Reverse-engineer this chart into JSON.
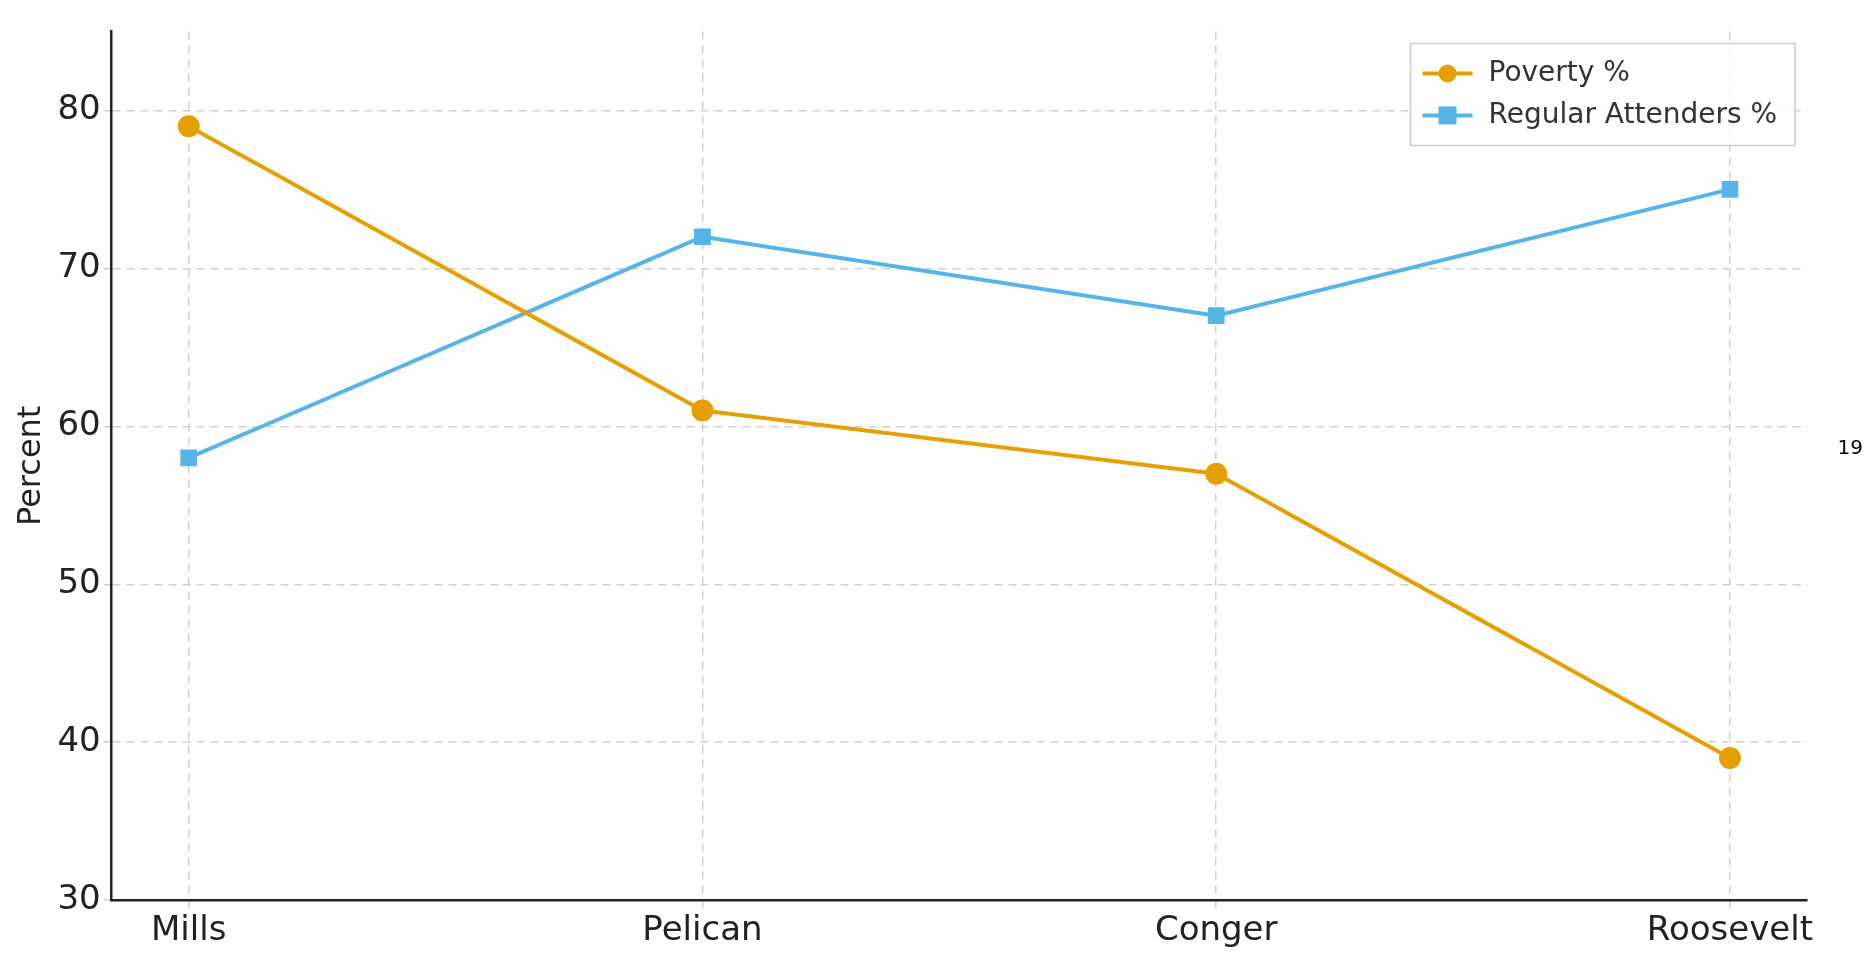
{
  "chart_data": {
    "type": "line",
    "ylabel": "Percent",
    "categories": [
      "Mills",
      "Pelican",
      "Conger",
      "Roosevelt"
    ],
    "series": [
      {
        "name": "Poverty %",
        "color": "#e69f00",
        "values": [
          79,
          61,
          57,
          39
        ],
        "marker": "circle"
      },
      {
        "name": "Regular Attenders %",
        "color": "#56b4e9",
        "values": [
          58,
          72,
          67,
          75
        ],
        "marker": "square"
      }
    ],
    "ylim": [
      30,
      85
    ],
    "yticks": [
      30,
      40,
      50,
      60,
      70,
      80
    ],
    "grid": true,
    "legend": "top right",
    "annotations": [
      "19"
    ]
  }
}
